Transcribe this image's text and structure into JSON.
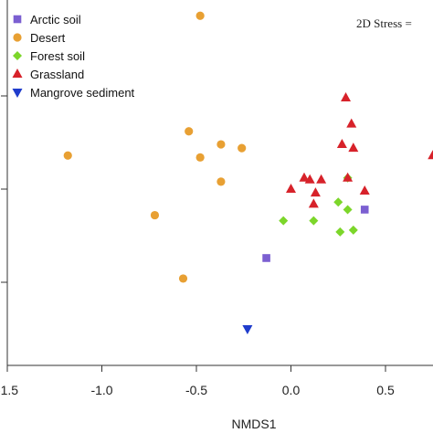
{
  "chart_data": {
    "type": "scatter",
    "title": "",
    "xlabel": "NMDS1",
    "ylabel": "",
    "annotation": "2D Stress =",
    "xlim": [
      -1.5,
      0.75
    ],
    "ylim": [
      -0.85,
      0.95
    ],
    "xticks": [
      -1.5,
      -1.0,
      -0.5,
      0.0,
      0.5
    ],
    "xtick_labels": [
      "-1.5",
      "-1.0",
      "-0.5",
      "0.0",
      "0.5"
    ],
    "yticks": [
      -0.5,
      0.0,
      0.5
    ],
    "legend_position": "top-left",
    "series": [
      {
        "name": "Arctic soil",
        "marker": "square",
        "color": "#7b5fd1",
        "points": [
          [
            -0.13,
            -0.37
          ],
          [
            0.39,
            -0.11
          ]
        ]
      },
      {
        "name": "Desert",
        "marker": "circle",
        "color": "#e8a033",
        "points": [
          [
            -0.48,
            0.93
          ],
          [
            -0.54,
            0.31
          ],
          [
            -0.37,
            0.24
          ],
          [
            -0.26,
            0.22
          ],
          [
            -1.18,
            0.18
          ],
          [
            -0.48,
            0.17
          ],
          [
            -0.37,
            0.04
          ],
          [
            -0.72,
            -0.14
          ],
          [
            -0.57,
            -0.48
          ]
        ]
      },
      {
        "name": "Forest soil",
        "marker": "diamond",
        "color": "#7cd62a",
        "points": [
          [
            0.3,
            0.06
          ],
          [
            0.25,
            -0.07
          ],
          [
            0.3,
            -0.11
          ],
          [
            -0.04,
            -0.17
          ],
          [
            0.12,
            -0.17
          ],
          [
            0.33,
            -0.22
          ],
          [
            0.26,
            -0.23
          ]
        ]
      },
      {
        "name": "Grassland",
        "marker": "triangle-up",
        "color": "#d7222a",
        "points": [
          [
            0.29,
            0.49
          ],
          [
            0.32,
            0.35
          ],
          [
            0.27,
            0.24
          ],
          [
            0.33,
            0.22
          ],
          [
            0.75,
            0.18
          ],
          [
            0.07,
            0.06
          ],
          [
            0.1,
            0.05
          ],
          [
            0.16,
            0.05
          ],
          [
            0.3,
            0.06
          ],
          [
            0.0,
            0.0
          ],
          [
            0.13,
            -0.02
          ],
          [
            0.39,
            -0.01
          ],
          [
            0.12,
            -0.08
          ]
        ]
      },
      {
        "name": "Mangrove sediment",
        "marker": "triangle-down",
        "color": "#1f3ccc",
        "points": [
          [
            -0.23,
            -0.75
          ]
        ]
      }
    ]
  }
}
